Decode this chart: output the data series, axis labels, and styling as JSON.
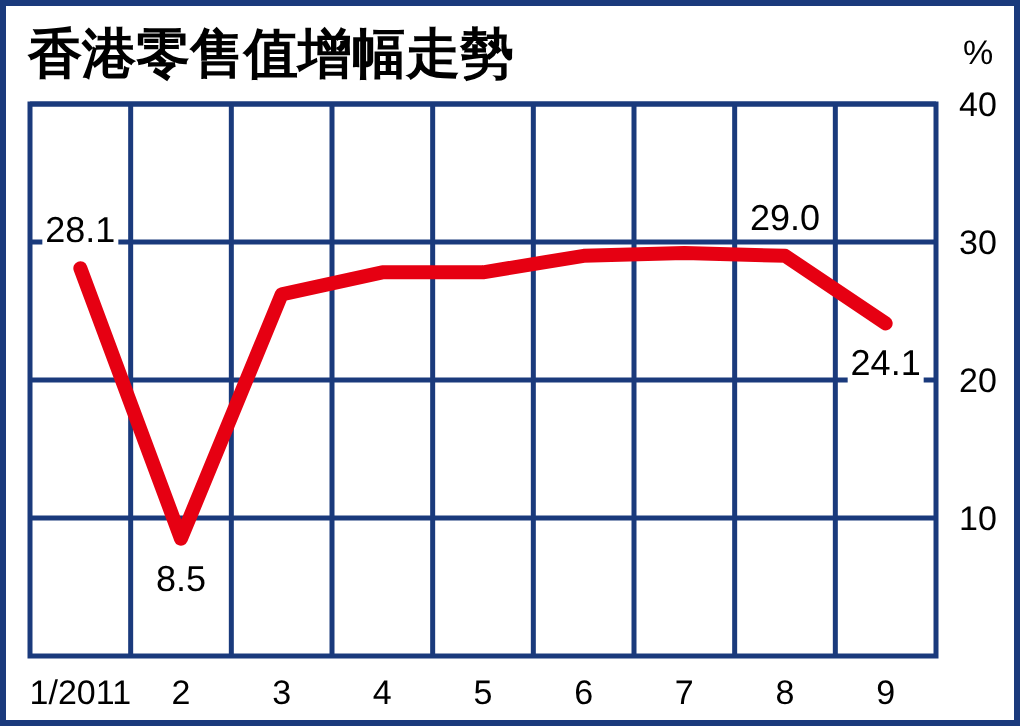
{
  "chart_data": {
    "type": "line",
    "title": "香港零售值增幅走勢",
    "ylabel": "%",
    "categories": [
      "1/2011",
      "2",
      "3",
      "4",
      "5",
      "6",
      "7",
      "8",
      "9"
    ],
    "series": [
      {
        "color": "#e60012",
        "values": [
          28.1,
          8.5,
          26.2,
          27.8,
          27.8,
          29.0,
          29.2,
          29.0,
          24.1
        ],
        "value_labels": [
          "28.1",
          "8.5",
          null,
          null,
          null,
          null,
          null,
          "29.0",
          "24.1"
        ]
      }
    ],
    "ylim": [
      0,
      40
    ],
    "yticks": [
      10,
      20,
      30,
      40
    ],
    "grid": true,
    "marker": "none",
    "line_style": "solid"
  }
}
